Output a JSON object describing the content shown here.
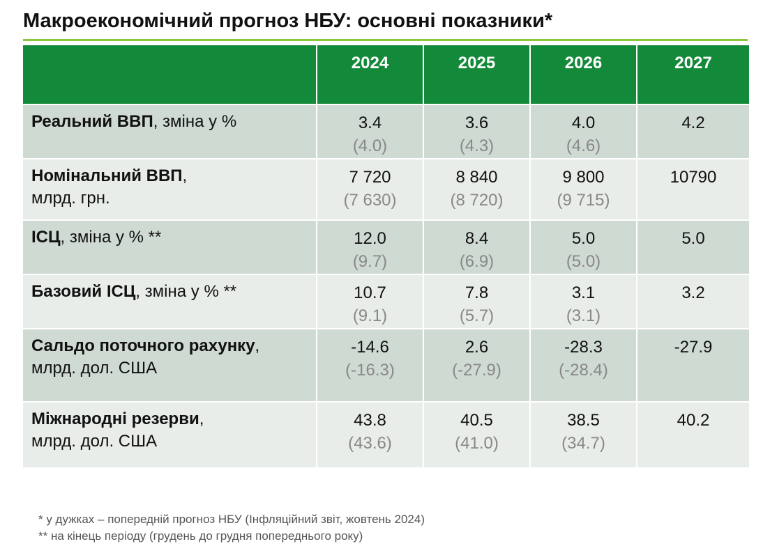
{
  "title": "Макроекономічний прогноз НБУ: основні показники*",
  "table": {
    "header": [
      "2024",
      "2025",
      "2026",
      "2027"
    ],
    "rows": [
      {
        "bold": "Реальний ВВП",
        "rest": ", зміна у %",
        "cells": [
          {
            "current": "3.4",
            "previous": "(4.0)"
          },
          {
            "current": "3.6",
            "previous": "(4.3)"
          },
          {
            "current": "4.0",
            "previous": "(4.6)"
          },
          {
            "current": "4.2"
          }
        ]
      },
      {
        "bold": "Номінальний ВВП",
        "rest": ",",
        "line2": "млрд. грн.",
        "cells": [
          {
            "current": "7 720",
            "previous": "(7 630)"
          },
          {
            "current": "8 840",
            "previous": "(8 720)"
          },
          {
            "current": "9 800",
            "previous": "(9 715)"
          },
          {
            "current": "10790"
          }
        ]
      },
      {
        "bold": "ІСЦ",
        "rest": ", зміна у % **",
        "cells": [
          {
            "current": "12.0",
            "previous": "(9.7)"
          },
          {
            "current": "8.4",
            "previous": "(6.9)"
          },
          {
            "current": "5.0",
            "previous": "(5.0)"
          },
          {
            "current": "5.0"
          }
        ]
      },
      {
        "bold": "Базовий ІСЦ",
        "rest": ", зміна у % **",
        "cells": [
          {
            "current": "10.7",
            "previous": "(9.1)"
          },
          {
            "current": "7.8",
            "previous": "(5.7)"
          },
          {
            "current": "3.1",
            "previous": "(3.1)"
          },
          {
            "current": "3.2"
          }
        ]
      },
      {
        "bold": "Сальдо поточного рахунку",
        "rest": ",",
        "line2": "млрд. дол. США",
        "cells": [
          {
            "current": "-14.6",
            "previous": "(-16.3)"
          },
          {
            "current": "2.6",
            "previous": "(-27.9)"
          },
          {
            "current": "-28.3",
            "previous": "(-28.4)"
          },
          {
            "current": "-27.9"
          }
        ]
      },
      {
        "bold": "Міжнародні резерви",
        "rest": ",",
        "line2": "млрд. дол. США",
        "cells": [
          {
            "current": "43.8",
            "previous": "(43.6)"
          },
          {
            "current": "40.5",
            "previous": "(41.0)"
          },
          {
            "current": "38.5",
            "previous": "(34.7)"
          },
          {
            "current": "40.2"
          }
        ]
      }
    ]
  },
  "footnotes": [
    "* у дужках – попередній прогноз НБУ (Інфляційний звіт, жовтень 2024)",
    "** на кінець періоду (грудень до грудня попереднього року)"
  ]
}
